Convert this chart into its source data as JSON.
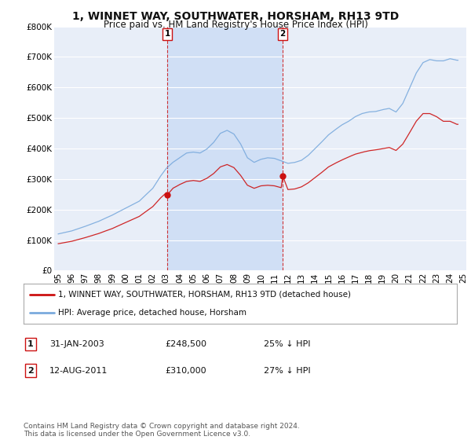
{
  "title": "1, WINNET WAY, SOUTHWATER, HORSHAM, RH13 9TD",
  "subtitle": "Price paid vs. HM Land Registry's House Price Index (HPI)",
  "title_fontsize": 10,
  "subtitle_fontsize": 8.5,
  "background_color": "#ffffff",
  "plot_bg_color": "#e8eef8",
  "shade_color": "#d0dff5",
  "grid_color": "#ffffff",
  "hpi_color": "#7aaadd",
  "price_color": "#cc1111",
  "ylim": [
    0,
    800000
  ],
  "yticks": [
    0,
    100000,
    200000,
    300000,
    400000,
    500000,
    600000,
    700000,
    800000
  ],
  "ytick_labels": [
    "£0",
    "£100K",
    "£200K",
    "£300K",
    "£400K",
    "£500K",
    "£600K",
    "£700K",
    "£800K"
  ],
  "sale1_date": 2003.08,
  "sale1_price": 248500,
  "sale1_label": "1",
  "sale2_date": 2011.62,
  "sale2_price": 310000,
  "sale2_label": "2",
  "legend_line1": "1, WINNET WAY, SOUTHWATER, HORSHAM, RH13 9TD (detached house)",
  "legend_line2": "HPI: Average price, detached house, Horsham",
  "info_date1": "31-JAN-2003",
  "info_price1": "£248,500",
  "info_pct1": "25% ↓ HPI",
  "info_date2": "12-AUG-2011",
  "info_price2": "£310,000",
  "info_pct2": "27% ↓ HPI",
  "footnote": "Contains HM Land Registry data © Crown copyright and database right 2024.\nThis data is licensed under the Open Government Licence v3.0.",
  "xlim_start": 1995.0,
  "xlim_end": 2025.2
}
